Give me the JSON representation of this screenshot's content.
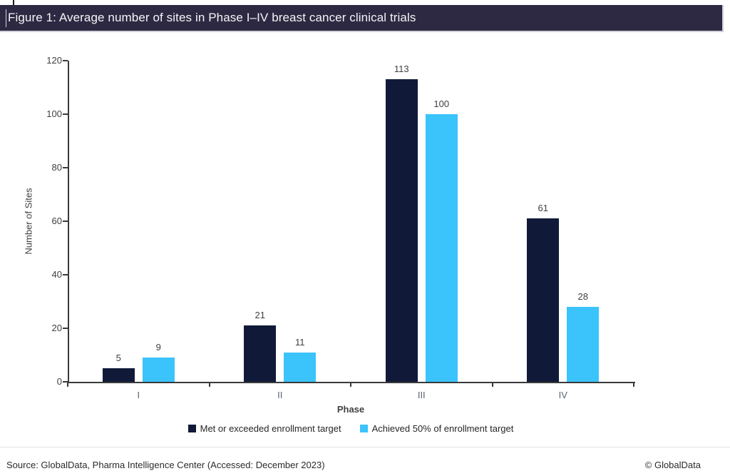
{
  "header": {
    "title": "Figure 1: Average number of sites in Phase I–IV breast cancer clinical trials"
  },
  "chart_data": {
    "type": "bar",
    "categories": [
      "I",
      "II",
      "III",
      "IV"
    ],
    "series": [
      {
        "name": "Met or exceeded enrollment target",
        "color": "#101a38",
        "values": [
          5,
          21,
          113,
          61
        ]
      },
      {
        "name": "Achieved 50% of enrollment target",
        "color": "#3bc3fc",
        "values": [
          9,
          11,
          100,
          28
        ]
      }
    ],
    "title": "Figure 1: Average number of sites in Phase I–IV breast cancer clinical trials",
    "xlabel": "Phase",
    "ylabel": "Number  of Sites",
    "ylim": [
      0,
      120
    ],
    "ytick_step": 20,
    "grid": false,
    "legend_position": "bottom",
    "data_labels": true
  },
  "footer": {
    "source": "Source: GlobalData, Pharma Intelligence Center (Accessed: December 2023)",
    "copyright": "© GlobalData"
  }
}
